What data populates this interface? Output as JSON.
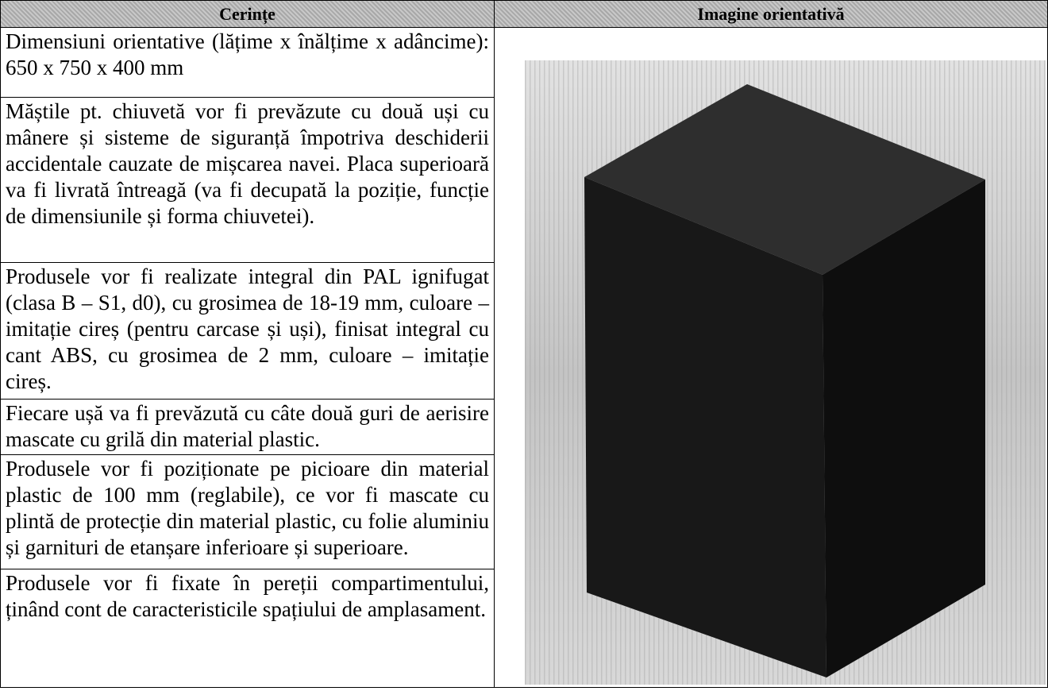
{
  "header": {
    "columns": [
      "Cerințe",
      "Imagine orientativă"
    ]
  },
  "table": {
    "rows": [
      "Dimensiuni orientative (lățime x înălțime x adâncime): 650 x 750 x 400 mm",
      "Măștile pt. chiuvetă vor fi prevăzute cu două uși cu mânere și sisteme de siguranță împotriva deschiderii accidentale cauzate de mișcarea navei. Placa superioară va fi livrată întreagă (va fi decupată la poziție, funcție de dimensiunile și forma chiuvetei).",
      "Produsele vor fi realizate integral din PAL ignifugat (clasa B – S1, d0), cu grosimea de 18-19 mm, culoare – imitație cireș (pentru carcase și uși), finisat integral cu cant ABS, cu grosimea de 2 mm, culoare – imitație cireș.",
      "Fiecare ușă va fi prevăzută cu câte două guri de aerisire mascate cu grilă din material plastic.",
      "Produsele vor fi poziționate pe picioare din material plastic de 100 mm (reglabile), ce vor fi mascate cu plintă de protecție din material plastic, cu folie aluminiu și garnituri de etanșare inferioare și superioare.",
      "Produsele vor fi fixate în pereții compartimentului, ținând cont de caracteristicile spațiului de amplasament."
    ]
  }
}
